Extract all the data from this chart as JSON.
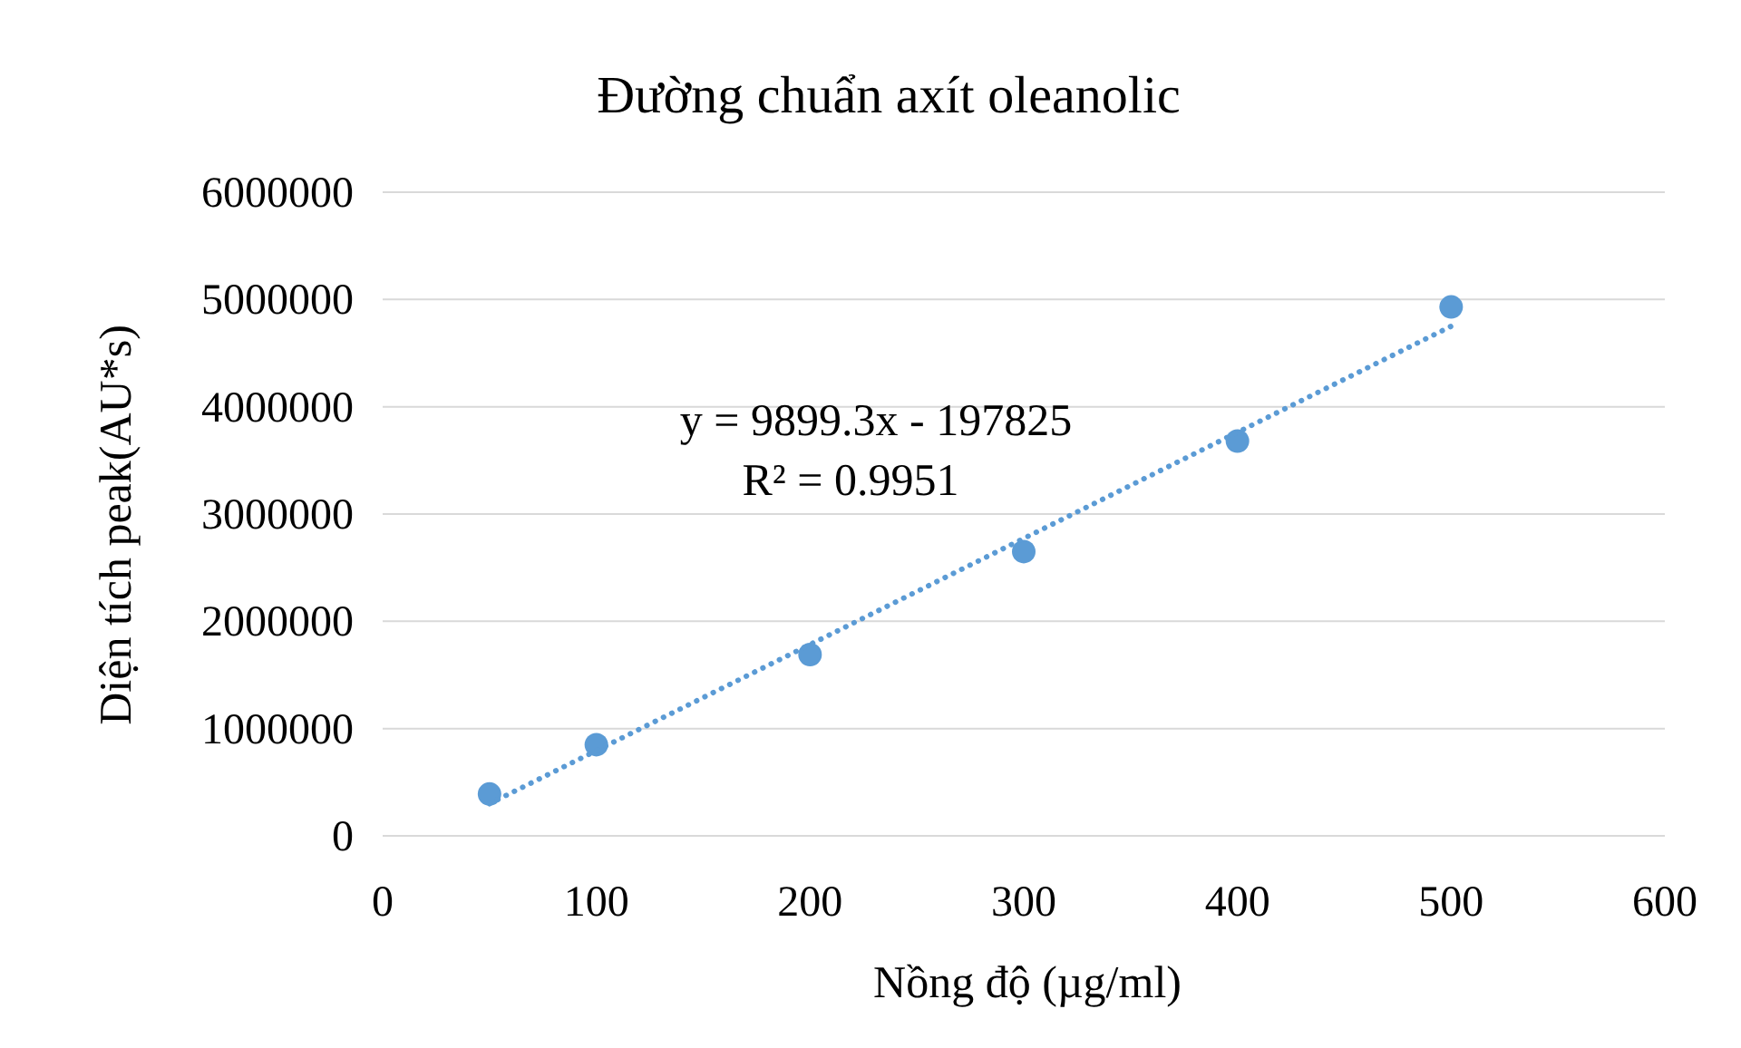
{
  "chart_data": {
    "type": "scatter",
    "title": "Đường chuẩn axít oleanolic",
    "xlabel": "Nồng độ (µg/ml)",
    "ylabel": "Diện tích peak(AU*s)",
    "x": [
      50,
      100,
      200,
      300,
      400,
      500
    ],
    "series": [
      {
        "color": "#5b9bd5",
        "marker": "circle",
        "values": [
          390000,
          850000,
          1690000,
          2650000,
          3680000,
          4930000
        ]
      },
      {
        "type": "line",
        "color": "#5b9bd5",
        "line_style": "dotted",
        "marker": "none",
        "x": [
          50,
          500
        ],
        "values": [
          300000,
          4750000
        ]
      }
    ],
    "annotations": [
      "y = 9899.3x - 197825",
      "R² = 0.9951"
    ],
    "xlim": [
      0,
      600
    ],
    "xticks": [
      0,
      100,
      200,
      300,
      400,
      500,
      600
    ],
    "ylim": [
      0,
      6000000
    ],
    "yticks": [
      0,
      1000000,
      2000000,
      3000000,
      4000000,
      5000000,
      6000000
    ],
    "grid": "y"
  }
}
